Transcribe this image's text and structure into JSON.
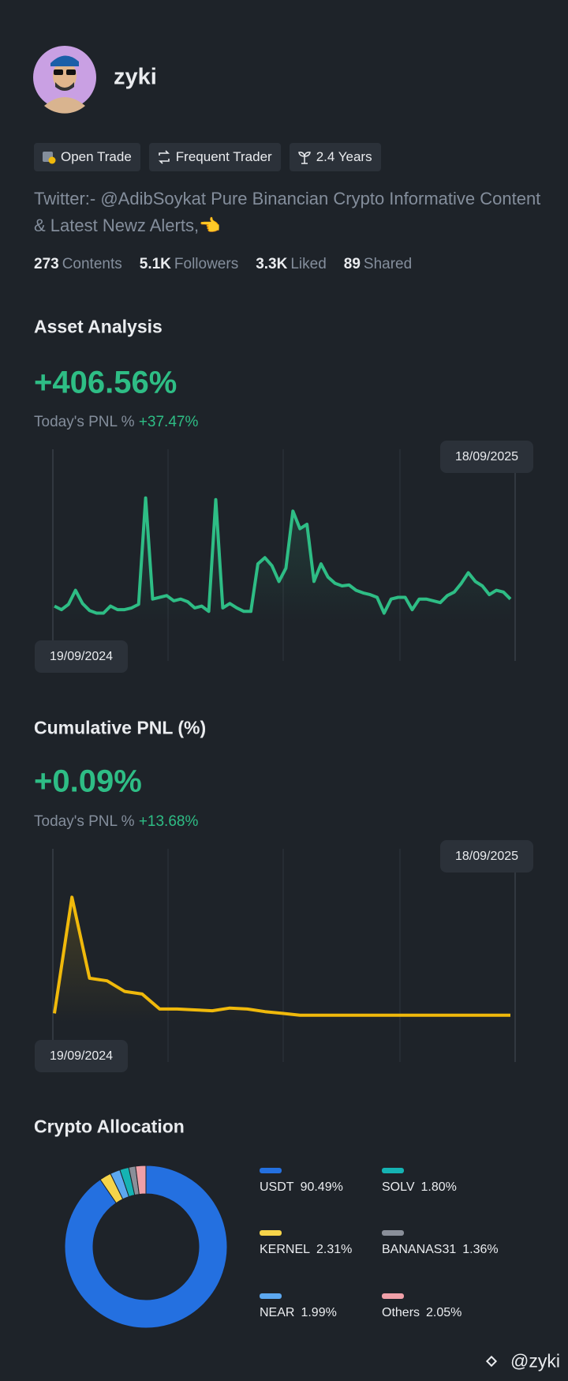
{
  "profile": {
    "name": "zyki",
    "badges": [
      "Open Trade",
      "Frequent Trader",
      "2.4 Years"
    ],
    "bio": "Twitter:- @AdibSoykat Pure Binancian Crypto Informative Content & Latest Newz Alerts,👈",
    "stats": [
      {
        "value": "273",
        "label": "Contents"
      },
      {
        "value": "5.1K",
        "label": "Followers"
      },
      {
        "value": "3.3K",
        "label": "Liked"
      },
      {
        "value": "89",
        "label": "Shared"
      }
    ]
  },
  "asset_analysis": {
    "title": "Asset Analysis",
    "value": "+406.56%",
    "today_label": "Today's PNL %",
    "today_value": "+37.47%",
    "chart": {
      "type": "line",
      "color": "#2ebd85",
      "start_label": "19/09/2024",
      "end_label": "18/09/2025",
      "ylim": [
        0,
        140
      ],
      "values": [
        12,
        8,
        14,
        30,
        15,
        7,
        4,
        4,
        12,
        8,
        8,
        10,
        14,
        135,
        20,
        22,
        24,
        18,
        20,
        17,
        10,
        12,
        6,
        133,
        10,
        15,
        10,
        6,
        6,
        60,
        67,
        58,
        40,
        55,
        120,
        100,
        105,
        40,
        60,
        45,
        38,
        35,
        36,
        30,
        27,
        25,
        22,
        4,
        20,
        22,
        22,
        8,
        20,
        20,
        18,
        16,
        24,
        28,
        38,
        50,
        40,
        35,
        25,
        30,
        28,
        20
      ]
    }
  },
  "cumulative_pnl": {
    "title": "Cumulative PNL (%)",
    "value": "+0.09%",
    "today_label": "Today's PNL %",
    "today_value": "+13.68%",
    "chart": {
      "type": "line",
      "color": "#f0b90b",
      "start_label": "19/09/2024",
      "end_label": "18/09/2025",
      "ylim": [
        0,
        140
      ],
      "values": [
        5,
        137,
        45,
        42,
        30,
        27,
        10,
        10,
        9,
        8,
        11,
        10,
        7,
        5,
        3,
        3,
        3,
        3,
        3,
        3,
        3,
        3,
        3,
        3,
        3,
        3,
        3
      ]
    }
  },
  "crypto_allocation": {
    "title": "Crypto Allocation",
    "chart": {
      "type": "donut",
      "categories": [
        "USDT",
        "KERNEL",
        "NEAR",
        "SOLV",
        "BANANAS31",
        "Others"
      ],
      "values": [
        90.49,
        2.31,
        1.99,
        1.8,
        1.36,
        2.05
      ],
      "value_labels": [
        "90.49%",
        "2.31%",
        "1.99%",
        "1.80%",
        "1.36%",
        "2.05%"
      ],
      "colors": [
        "#2470e0",
        "#f6d44a",
        "#5ca8f0",
        "#15b3b3",
        "#8a8f99",
        "#f0a0a8"
      ]
    }
  },
  "watermark": "@zyki"
}
